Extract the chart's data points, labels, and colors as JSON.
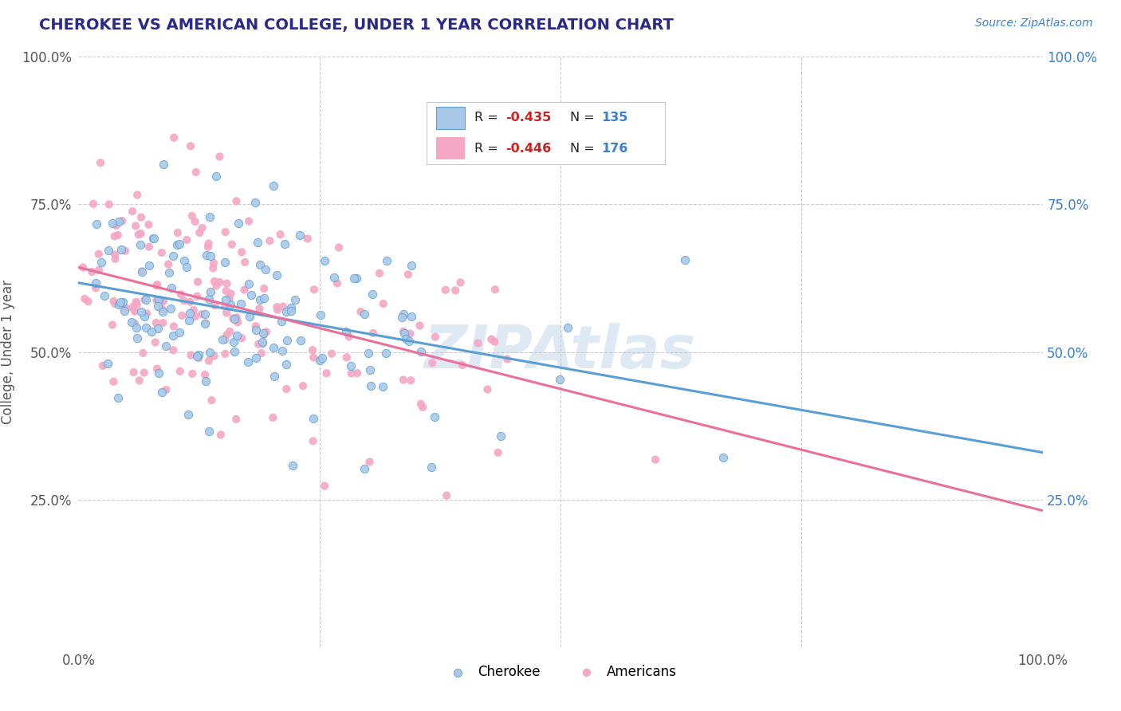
{
  "title": "CHEROKEE VS AMERICAN COLLEGE, UNDER 1 YEAR CORRELATION CHART",
  "source_text": "Source: ZipAtlas.com",
  "ylabel": "College, Under 1 year",
  "xlim": [
    0.0,
    1.0
  ],
  "ylim": [
    0.0,
    1.0
  ],
  "cherokee_color": "#a8c8e8",
  "americans_color": "#f4a8c4",
  "cherokee_line_color": "#5a9fd4",
  "americans_line_color": "#e8709a",
  "cherokee_R": -0.435,
  "cherokee_N": 135,
  "americans_R": -0.446,
  "americans_N": 176,
  "legend_label_cherokee": "Cherokee",
  "legend_label_americans": "Americans",
  "watermark": "ZIPAtlas",
  "background_color": "#ffffff",
  "grid_color": "#cccccc",
  "title_color": "#2a2a8a",
  "legend_R_color": "#cc2222",
  "legend_N_color": "#3a7fd4",
  "right_ytick_color": "#3a7fd4"
}
